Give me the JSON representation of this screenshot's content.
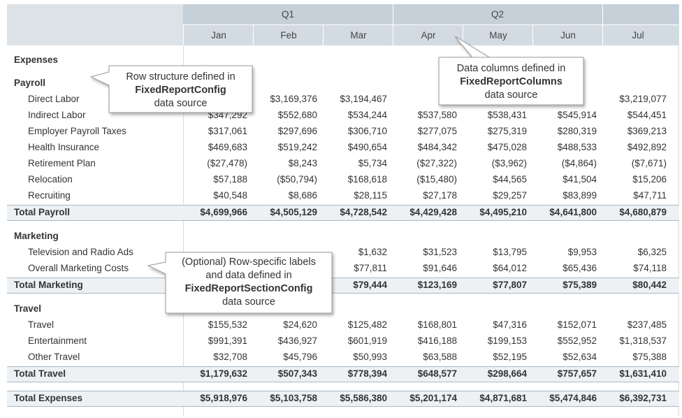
{
  "header": {
    "groups": [
      "Q1",
      "Q2"
    ],
    "months": [
      "Jan",
      "Feb",
      "Mar",
      "Apr",
      "May",
      "Jun",
      "Jul"
    ]
  },
  "title": "Expenses",
  "sections": [
    {
      "name": "Payroll",
      "rows": [
        {
          "label": "Direct Labor",
          "values": [
            null,
            "$3,169,376",
            "$3,194,467",
            null,
            null,
            null,
            "$3,219,077"
          ]
        },
        {
          "label": "Indirect Labor",
          "values": [
            "$347,292",
            "$552,680",
            "$534,244",
            "$537,580",
            "$538,431",
            "$545,914",
            "$544,451"
          ]
        },
        {
          "label": "Employer Payroll Taxes",
          "values": [
            "$317,061",
            "$297,696",
            "$306,710",
            "$277,075",
            "$275,319",
            "$280,319",
            "$369,213"
          ]
        },
        {
          "label": "Health Insurance",
          "values": [
            "$469,683",
            "$519,242",
            "$490,654",
            "$484,342",
            "$475,028",
            "$488,533",
            "$492,892"
          ]
        },
        {
          "label": "Retirement Plan",
          "values": [
            "($27,478)",
            "$8,243",
            "$5,734",
            "($27,322)",
            "($3,962)",
            "($4,864)",
            "($7,671)"
          ]
        },
        {
          "label": "Relocation",
          "values": [
            "$57,188",
            "($50,794)",
            "$168,618",
            "($15,480)",
            "$44,565",
            "$41,504",
            "$15,206"
          ]
        },
        {
          "label": "Recruiting",
          "values": [
            "$40,548",
            "$8,686",
            "$28,115",
            "$27,178",
            "$29,257",
            "$83,899",
            "$47,711"
          ]
        }
      ],
      "total": {
        "label": "Total Payroll",
        "values": [
          "$4,699,966",
          "$4,505,129",
          "$4,728,542",
          "$4,429,428",
          "$4,495,210",
          "$4,641,800",
          "$4,680,879"
        ]
      }
    },
    {
      "name": "Marketing",
      "rows": [
        {
          "label": "Television and Radio Ads",
          "values": [
            null,
            null,
            "$1,632",
            "$31,523",
            "$13,795",
            "$9,953",
            "$6,325"
          ]
        },
        {
          "label": "Overall Marketing Costs",
          "values": [
            null,
            null,
            "$77,811",
            "$91,646",
            "$64,012",
            "$65,436",
            "$74,118"
          ]
        }
      ],
      "total": {
        "label": "Total Marketing",
        "values": [
          null,
          null,
          "$79,444",
          "$123,169",
          "$77,807",
          "$75,389",
          "$80,442"
        ]
      }
    },
    {
      "name": "Travel",
      "rows": [
        {
          "label": "Travel",
          "values": [
            "$155,532",
            "$24,620",
            "$125,482",
            "$168,801",
            "$47,316",
            "$152,071",
            "$237,485"
          ]
        },
        {
          "label": "Entertainment",
          "values": [
            "$991,391",
            "$436,927",
            "$601,919",
            "$416,188",
            "$199,153",
            "$552,952",
            "$1,318,537"
          ]
        },
        {
          "label": "Other Travel",
          "values": [
            "$32,708",
            "$45,796",
            "$50,993",
            "$63,588",
            "$52,195",
            "$52,634",
            "$75,388"
          ]
        }
      ],
      "total": {
        "label": "Total Travel",
        "values": [
          "$1,179,632",
          "$507,343",
          "$778,394",
          "$648,577",
          "$298,664",
          "$757,657",
          "$1,631,410"
        ]
      }
    }
  ],
  "grand_total": {
    "label": "Total Expenses",
    "values": [
      "$5,918,976",
      "$5,103,758",
      "$5,586,380",
      "$5,201,174",
      "$4,871,681",
      "$5,474,846",
      "$6,392,731"
    ]
  },
  "callouts": [
    {
      "lines": [
        "Row structure defined in",
        "FixedReportConfig",
        "data source"
      ]
    },
    {
      "lines": [
        "Data columns defined in",
        "FixedReportColumns",
        "data source"
      ]
    },
    {
      "lines": [
        "(Optional) Row-specific labels",
        "and data defined in",
        "FixedReportSectionConfig",
        "data source"
      ]
    }
  ]
}
